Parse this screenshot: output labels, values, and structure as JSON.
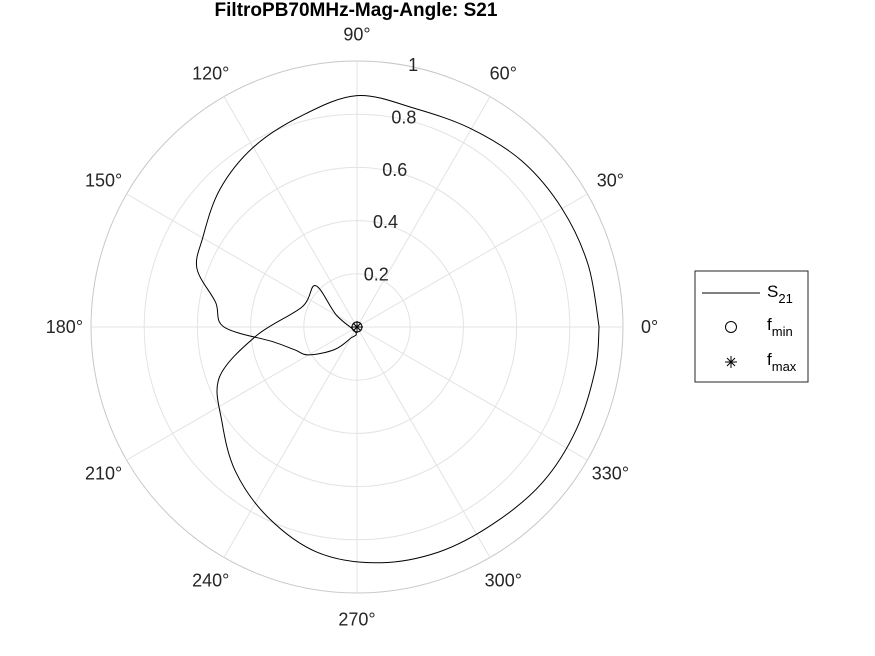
{
  "chart_data": {
    "type": "polar-line",
    "title": "FiltroPB70MHz-Mag-Angle: S21",
    "theta_ticks": [
      {
        "deg": 0,
        "label": "0°"
      },
      {
        "deg": 30,
        "label": "30°"
      },
      {
        "deg": 60,
        "label": "60°"
      },
      {
        "deg": 90,
        "label": "90°"
      },
      {
        "deg": 120,
        "label": "120°"
      },
      {
        "deg": 150,
        "label": "150°"
      },
      {
        "deg": 180,
        "label": "180°"
      },
      {
        "deg": 210,
        "label": "210°"
      },
      {
        "deg": 240,
        "label": "240°"
      },
      {
        "deg": 270,
        "label": "270°"
      },
      {
        "deg": 300,
        "label": "300°"
      },
      {
        "deg": 330,
        "label": "330°"
      }
    ],
    "r_ticks": [
      {
        "value": 0.2,
        "label": "0.2"
      },
      {
        "value": 0.4,
        "label": "0.4"
      },
      {
        "value": 0.6,
        "label": "0.6"
      },
      {
        "value": 0.8,
        "label": "0.8"
      },
      {
        "value": 1,
        "label": "1"
      }
    ],
    "rlim": [
      0,
      1
    ],
    "grid": true,
    "legend_position": "right",
    "series": [
      {
        "name": "S",
        "name_sub": "21",
        "marker": "line",
        "color": "#000000",
        "points": [
          {
            "theta": 0,
            "r": 0.91
          },
          {
            "theta": 15,
            "r": 0.9
          },
          {
            "theta": 30,
            "r": 0.89
          },
          {
            "theta": 45,
            "r": 0.88
          },
          {
            "theta": 60,
            "r": 0.86
          },
          {
            "theta": 75,
            "r": 0.85
          },
          {
            "theta": 90,
            "r": 0.87
          },
          {
            "theta": 105,
            "r": 0.82
          },
          {
            "theta": 120,
            "r": 0.78
          },
          {
            "theta": 135,
            "r": 0.73
          },
          {
            "theta": 150,
            "r": 0.67
          },
          {
            "theta": 160,
            "r": 0.64
          },
          {
            "theta": 170,
            "r": 0.54
          },
          {
            "theta": 180,
            "r": 0.5
          },
          {
            "theta": 190,
            "r": 0.32
          },
          {
            "theta": 200,
            "r": 0.25
          },
          {
            "theta": 210,
            "r": 0.21
          },
          {
            "theta": 225,
            "r": 0.12
          },
          {
            "theta": 240,
            "r": 0.05
          },
          {
            "theta": 255,
            "r": 0.02
          },
          {
            "theta": 150,
            "r": 0.09
          },
          {
            "theta": 135,
            "r": 0.22
          },
          {
            "theta": 160,
            "r": 0.22
          },
          {
            "theta": 185,
            "r": 0.38
          },
          {
            "theta": 200,
            "r": 0.55
          },
          {
            "theta": 215,
            "r": 0.62
          },
          {
            "theta": 230,
            "r": 0.71
          },
          {
            "theta": 245,
            "r": 0.79
          },
          {
            "theta": 260,
            "r": 0.86
          },
          {
            "theta": 275,
            "r": 0.89
          },
          {
            "theta": 290,
            "r": 0.9
          },
          {
            "theta": 305,
            "r": 0.9
          },
          {
            "theta": 320,
            "r": 0.91
          },
          {
            "theta": 335,
            "r": 0.91
          },
          {
            "theta": 350,
            "r": 0.91
          },
          {
            "theta": 360,
            "r": 0.91
          }
        ]
      },
      {
        "name": "f",
        "name_sub": "min",
        "marker": "circle",
        "color": "#000000",
        "points": [
          {
            "theta": 0,
            "r": 0.0
          }
        ]
      },
      {
        "name": "f",
        "name_sub": "max",
        "marker": "asterisk",
        "color": "#000000",
        "points": [
          {
            "theta": 0,
            "r": 0.0
          }
        ]
      }
    ]
  }
}
